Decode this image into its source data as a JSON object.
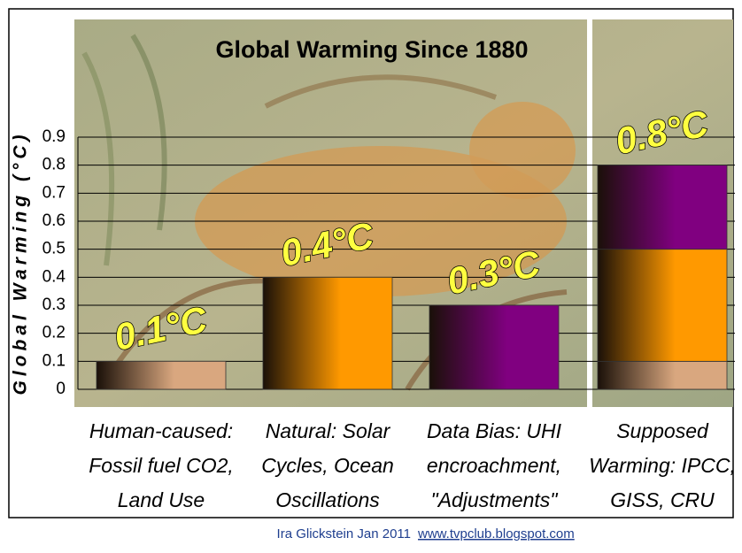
{
  "chart_data": {
    "type": "bar",
    "stacked": true,
    "title": "Global Warming Since 1880",
    "y_label": "Global Warming (°C)",
    "categories": [
      [
        "Human-caused:",
        "Fossil fuel CO2,",
        "Land Use"
      ],
      [
        "Natural: Solar",
        "Cycles, Ocean",
        "Oscillations"
      ],
      [
        "Data Bias: UHI",
        "encroachment,",
        "\"Adjustments\""
      ],
      [
        "Supposed",
        "Warming: IPCC,",
        "GISS, CRU"
      ]
    ],
    "series": [
      {
        "color": "#d9a77f",
        "values": [
          0.1,
          null,
          null,
          0.1
        ]
      },
      {
        "color": "#ff9900",
        "values": [
          null,
          0.4,
          null,
          0.4
        ]
      },
      {
        "color": "#800080",
        "values": [
          null,
          null,
          0.3,
          0.3
        ]
      }
    ],
    "totals": {
      "values": [
        0.1,
        0.4,
        0.3,
        0.8
      ],
      "value_labels": [
        "0.1°C",
        "0.4°C",
        "0.3°C",
        "0.8°C"
      ]
    },
    "ylim": [
      0,
      0.9
    ],
    "yticks": [
      0,
      0.1,
      0.2,
      0.3,
      0.4,
      0.5,
      0.6,
      0.7,
      0.8,
      0.9
    ],
    "grid": true,
    "footer": {
      "author": "Ira Glickstein Jan 2011",
      "link": "www.tvpclub.blogspot.com"
    }
  }
}
